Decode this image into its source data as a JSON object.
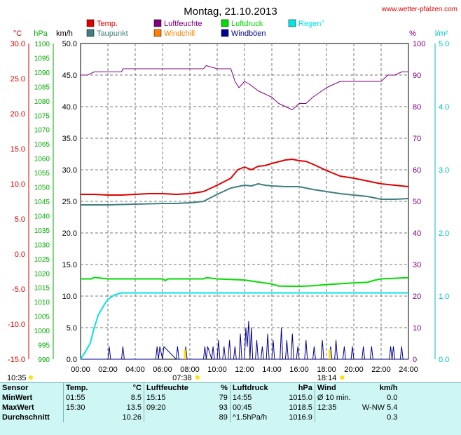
{
  "title": "Montag, 21.10.2013",
  "website": "www.wetter-pfalzen.com",
  "colors": {
    "temp": "#e00000",
    "humidity": "#800080",
    "pressure": "#00dd00",
    "rain": "#00e5e5",
    "dewpoint": "#3f7f7f",
    "windchill": "#ff8000",
    "gusts": "#000090",
    "grid": "#7a7a7a",
    "temp_axis": "#e00000",
    "hpa_axis": "#00aa00",
    "kmh_axis": "#000000",
    "pct_axis": "#800080",
    "rain_axis": "#00bfbf",
    "sun": "#ffe000"
  },
  "legend": [
    {
      "label": "Temp.",
      "color": "#e00000"
    },
    {
      "label": "Luftfeuchte",
      "color": "#800080"
    },
    {
      "label": "Luftdruck",
      "color": "#00dd00"
    },
    {
      "label": "Regen°",
      "color": "#00e5e5"
    },
    {
      "label": "Taupunkt",
      "color": "#3f7f7f"
    },
    {
      "label": "Windchill",
      "color": "#ff8000"
    },
    {
      "label": "Windböen",
      "color": "#000090"
    }
  ],
  "axes": {
    "unit_labels": [
      "°C",
      "hPa",
      "km/h",
      "%",
      "l/m²"
    ],
    "temp_ticks": [
      "30.0",
      "25.0",
      "20.0",
      "15.0",
      "10.0",
      "5.0",
      "0.0",
      "-5.0",
      "-10.0",
      "-15.0"
    ],
    "hpa_ticks": [
      "1100",
      "1095",
      "1090",
      "1085",
      "1080",
      "1075",
      "1070",
      "1065",
      "1060",
      "1055",
      "1050",
      "1045",
      "1040",
      "1035",
      "1030",
      "1025",
      "1020",
      "1015",
      "1010",
      "1005",
      "1000",
      "995",
      "990"
    ],
    "kmh_ticks": [
      "50.0",
      "45.0",
      "40.0",
      "35.0",
      "30.0",
      "25.0",
      "20.0",
      "15.0",
      "10.0",
      "5.0",
      "0.0"
    ],
    "pct_ticks": [
      "100",
      "90",
      "80",
      "70",
      "60",
      "50",
      "40",
      "30",
      "20",
      "10",
      "0"
    ],
    "rain_ticks": [
      "5.0",
      "4.0",
      "3.0",
      "2.0",
      "1.0",
      "0.0"
    ],
    "time_ticks": [
      "00:00",
      "02:00",
      "04:00",
      "06:00",
      "08:00",
      "10:00",
      "12:00",
      "14:00",
      "16:00",
      "18:00",
      "20:00",
      "22:00",
      "24:00"
    ]
  },
  "sun": {
    "sunrise": "07:38",
    "sunset": "18:14",
    "extra": "10:35"
  },
  "chart_data": {
    "type": "line",
    "title": "Montag, 21.10.2013",
    "x_range": [
      0,
      24
    ],
    "temp_range": [
      -15,
      30
    ],
    "kmh_range": [
      0,
      50
    ],
    "hpa_range": [
      990,
      1100
    ],
    "pct_range": [
      0,
      100
    ],
    "rain_range": [
      0,
      5
    ],
    "series": [
      {
        "name": "Temp.",
        "unit": "°C",
        "x": [
          0,
          1,
          2,
          3,
          4,
          5,
          6,
          7,
          8,
          9,
          10,
          10.5,
          11,
          11.5,
          12,
          12.5,
          13,
          13.5,
          14,
          15,
          15.5,
          16,
          16.5,
          17,
          18,
          19,
          20,
          21,
          22,
          23,
          24
        ],
        "y": [
          8.5,
          8.5,
          8.4,
          8.4,
          8.5,
          8.6,
          8.6,
          8.5,
          8.6,
          8.9,
          9.8,
          10.3,
          10.8,
          12.0,
          12.4,
          12.0,
          12.5,
          12.6,
          12.9,
          13.4,
          13.5,
          13.3,
          13.2,
          12.8,
          11.9,
          11.1,
          10.8,
          10.4,
          10.0,
          9.8,
          9.6
        ]
      },
      {
        "name": "Taupunkt",
        "unit": "°C",
        "x": [
          0,
          2,
          4,
          6,
          7,
          8,
          9,
          10,
          11,
          12,
          12.5,
          13,
          13.5,
          14,
          15,
          16,
          17,
          18,
          19,
          20,
          21,
          22,
          23,
          24
        ],
        "y": [
          7.0,
          7.0,
          7.1,
          7.2,
          7.2,
          7.3,
          7.5,
          8.5,
          9.4,
          9.8,
          9.7,
          10.0,
          9.8,
          9.7,
          9.6,
          9.6,
          9.2,
          8.9,
          8.6,
          8.4,
          8.2,
          7.8,
          7.8,
          7.9
        ]
      },
      {
        "name": "Luftfeuchte",
        "unit": "%",
        "x": [
          0,
          0.5,
          1,
          2,
          3,
          3.1,
          4,
          6,
          7,
          9,
          9.2,
          10,
          11,
          11.3,
          11.6,
          12,
          12.4,
          13,
          14,
          14.5,
          15,
          15.5,
          16,
          16.5,
          17,
          18,
          19,
          20,
          21,
          22,
          22.5,
          23,
          23.5,
          24
        ],
        "y": [
          90,
          90,
          91,
          91,
          91,
          92,
          92,
          92,
          92,
          92,
          93,
          92,
          92,
          88,
          86,
          88,
          87,
          85,
          83,
          81,
          80,
          79,
          81,
          81,
          83,
          86,
          88,
          88,
          88,
          88,
          90,
          90,
          91,
          91
        ]
      },
      {
        "name": "Luftdruck",
        "unit": "hPa",
        "x": [
          0,
          0.8,
          1,
          2,
          6,
          6.2,
          6.4,
          8,
          9,
          9.2,
          10,
          12,
          14,
          14.5,
          16,
          17,
          18,
          19,
          20,
          21,
          21.5,
          22,
          24
        ],
        "y": [
          1018.0,
          1018.0,
          1018.5,
          1018.0,
          1018.0,
          1017.4,
          1018.0,
          1018.0,
          1018.0,
          1018.4,
          1018.0,
          1017.6,
          1016.2,
          1015.5,
          1015.4,
          1015.6,
          1016.0,
          1016.3,
          1016.6,
          1016.8,
          1017.5,
          1018.0,
          1018.4
        ]
      },
      {
        "name": "Regen°",
        "unit": "l/m²",
        "x": [
          0,
          0.3,
          0.7,
          1,
          1.3,
          1.7,
          2,
          2.5,
          3,
          24
        ],
        "y": [
          0,
          0.1,
          0.25,
          0.5,
          0.7,
          0.85,
          0.95,
          1.02,
          1.05,
          1.05
        ]
      },
      {
        "name": "Windböen",
        "unit": "km/h",
        "x": [
          0,
          2.0,
          2.1,
          2.2,
          3.0,
          3.1,
          3.2,
          5.5,
          5.6,
          5.7,
          5.8,
          6.0,
          6.1,
          7.0,
          7.1,
          7.2,
          7.6,
          7.7,
          7.8,
          9.0,
          9.1,
          9.2,
          9.3,
          9.6,
          9.7,
          9.8,
          10.0,
          10.1,
          10.2,
          10.4,
          10.5,
          10.6,
          10.8,
          10.9,
          11.0,
          11.2,
          11.3,
          11.4,
          11.6,
          11.7,
          11.8,
          12.0,
          12.1,
          12.2,
          12.3,
          12.4,
          12.5,
          12.6,
          12.8,
          12.9,
          13.0,
          13.2,
          13.3,
          13.4,
          13.6,
          13.7,
          13.8,
          14.0,
          14.1,
          14.2,
          14.6,
          14.7,
          14.8,
          15.0,
          15.1,
          15.2,
          15.4,
          15.5,
          15.6,
          15.8,
          15.9,
          16.0,
          16.4,
          16.5,
          16.6,
          17.0,
          17.1,
          17.2,
          17.6,
          17.7,
          17.8,
          18.2,
          18.3,
          18.4,
          18.6,
          18.7,
          18.8,
          19.2,
          19.3,
          19.4,
          19.8,
          19.9,
          20.0,
          20.6,
          20.7,
          20.8,
          21.2,
          21.3,
          21.4,
          22.6,
          22.7,
          22.8,
          22.9,
          23.0,
          23.4,
          23.5,
          23.6,
          24
        ],
        "y": [
          0,
          0,
          2,
          0,
          0,
          2,
          0,
          0,
          2,
          0,
          2,
          0,
          2,
          0,
          2,
          0,
          0,
          2,
          0,
          0,
          2,
          0,
          2,
          0,
          2,
          0,
          0,
          3,
          0,
          0,
          2,
          0,
          0,
          3,
          0,
          0,
          2,
          0,
          0,
          4,
          0,
          0,
          5,
          2,
          6,
          0,
          5,
          0,
          0,
          3,
          0,
          0,
          2,
          0,
          0,
          4,
          0,
          0,
          3,
          0,
          0,
          5,
          0,
          0,
          3,
          0,
          0,
          4,
          0,
          0,
          2,
          0,
          0,
          3,
          0,
          0,
          2,
          0,
          0,
          3,
          0,
          0,
          2,
          0,
          0,
          3,
          0,
          0,
          2,
          0,
          0,
          2,
          0,
          0,
          2,
          0,
          0,
          2,
          0,
          0,
          2,
          0,
          2,
          0,
          0,
          2,
          0,
          0
        ]
      }
    ]
  },
  "stats": {
    "columns": [
      {
        "title": "Sensor",
        "unit": ""
      },
      {
        "title": "Temp.",
        "unit": "°C"
      },
      {
        "title": "Luftfeuchte",
        "unit": "%"
      },
      {
        "title": "Luftdruck",
        "unit": "hPa"
      },
      {
        "title": "Wind",
        "unit": "km/h"
      }
    ],
    "rows": [
      {
        "label": "MinWert",
        "t_time": "01:55",
        "t_val": "8.5",
        "h_time": "15:15",
        "h_val": "79",
        "p_time": "14:55",
        "p_val": "1015.0",
        "w_time": "Ø 10 min.",
        "w_val": "0.0"
      },
      {
        "label": "MaxWert",
        "t_time": "15:30",
        "t_val": "13.5",
        "h_time": "09:20",
        "h_val": "93",
        "p_time": "00:45",
        "p_val": "1018.5",
        "w_time": "12:35",
        "w_val": "W-NW 5.4"
      },
      {
        "label": "Durchschnitt",
        "t_time": "",
        "t_val": "10.26",
        "h_time": "",
        "h_val": "89",
        "p_time": "^1.5hPa/h",
        "p_val": "1016.9",
        "w_time": "",
        "w_val": "0.3"
      }
    ]
  }
}
